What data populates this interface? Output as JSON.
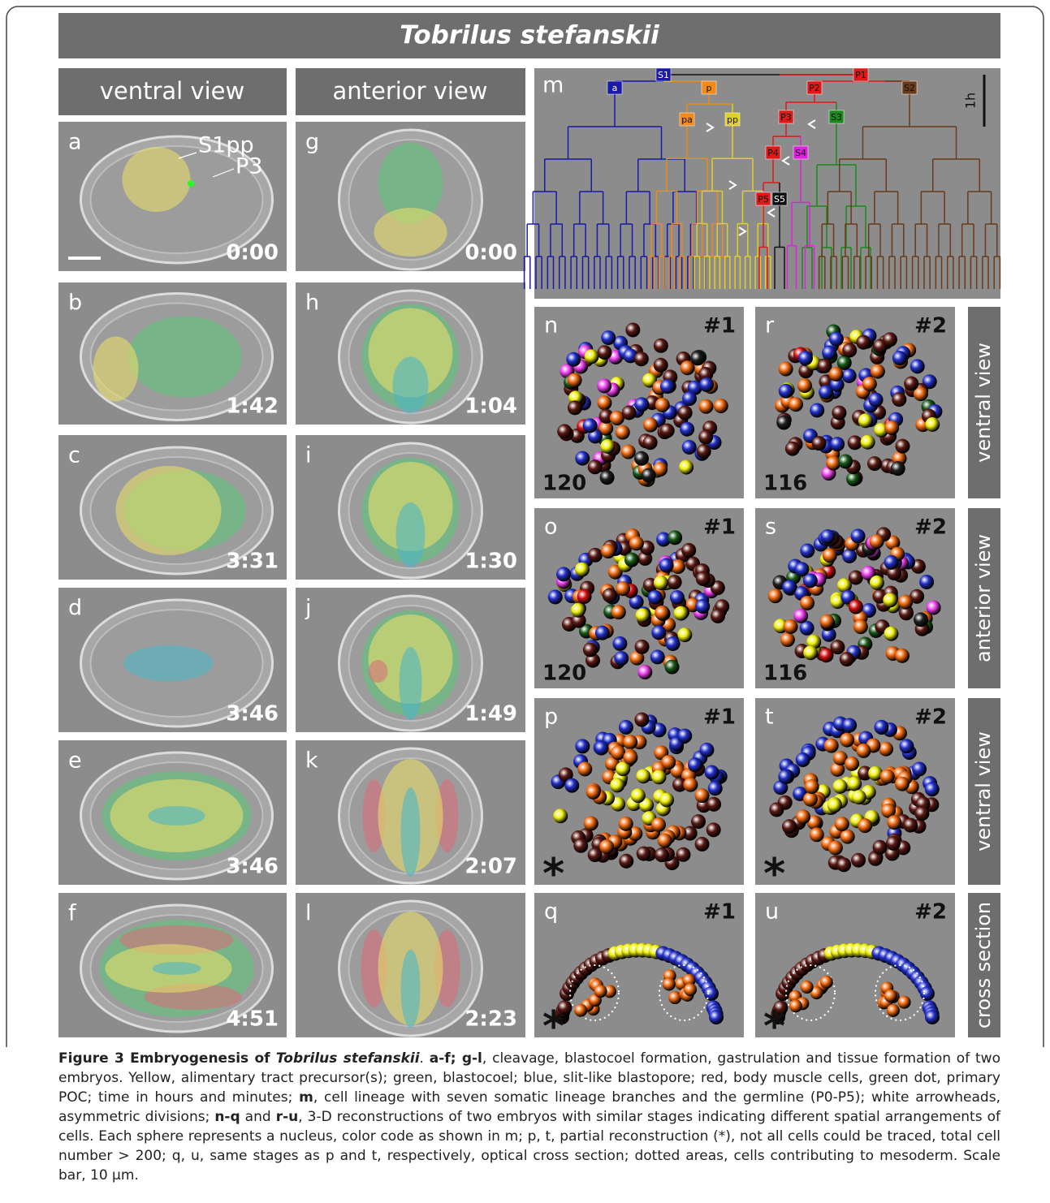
{
  "title": "Tobrilus stefanskii",
  "column_headers": [
    "ventral view",
    "anterior view"
  ],
  "micrographs": [
    {
      "letter": "a",
      "time": "0:00"
    },
    {
      "letter": "b",
      "time": "1:42"
    },
    {
      "letter": "c",
      "time": "3:31"
    },
    {
      "letter": "d",
      "time": "3:46"
    },
    {
      "letter": "e",
      "time": "3:46"
    },
    {
      "letter": "f",
      "time": "4:51"
    },
    {
      "letter": "g",
      "time": "0:00"
    },
    {
      "letter": "h",
      "time": "1:04"
    },
    {
      "letter": "i",
      "time": "1:30"
    },
    {
      "letter": "j",
      "time": "1:49"
    },
    {
      "letter": "k",
      "time": "2:07"
    },
    {
      "letter": "l",
      "time": "2:23"
    }
  ],
  "panel_a_labels": [
    "S1pp",
    "P3"
  ],
  "lineage": {
    "letter": "m",
    "scale": "1h",
    "nodes": [
      "S1",
      "P1",
      "a",
      "p",
      "P2",
      "S2",
      "pa",
      "pp",
      "P3",
      "S3",
      "P4",
      "S4",
      "P5",
      "S5"
    ]
  },
  "reconstructions": [
    {
      "letter": "n",
      "embryo": "#1",
      "count": 120
    },
    {
      "letter": "r",
      "embryo": "#2",
      "count": 116
    },
    {
      "letter": "o",
      "embryo": "#1",
      "count": 120
    },
    {
      "letter": "s",
      "embryo": "#2",
      "count": 116
    },
    {
      "letter": "p",
      "embryo": "#1",
      "marker": "*"
    },
    {
      "letter": "t",
      "embryo": "#2",
      "marker": "*"
    },
    {
      "letter": "q",
      "embryo": "#1",
      "marker": "*"
    },
    {
      "letter": "u",
      "embryo": "#2",
      "marker": "*"
    }
  ],
  "row_labels": [
    "ventral view",
    "anterior view",
    "ventral view",
    "cross section"
  ],
  "caption": [
    {
      "text": "Figure 3 Embryogenesis of ",
      "style": "bold"
    },
    {
      "text": "Tobrilus stefanskii",
      "style": "bold-italic"
    },
    {
      "text": ". ",
      "style": "normal"
    },
    {
      "text": "a-f; g-l",
      "style": "bold"
    },
    {
      "text": ", cleavage, blastocoel formation, gastrulation and tissue formation of two embryos. Yellow, alimentary tract precursor(s); green, blastocoel; blue, slit-like blastopore; red, body muscle cells, green dot, primary POC; time in hours and minutes; ",
      "style": "normal"
    },
    {
      "text": "m",
      "style": "bold"
    },
    {
      "text": ", cell lineage with seven somatic lineage branches and the germline (P0-P5); white arrowheads, asymmetric divisions; ",
      "style": "normal"
    },
    {
      "text": "n-q",
      "style": "bold"
    },
    {
      "text": " and ",
      "style": "normal"
    },
    {
      "text": "r-u",
      "style": "bold"
    },
    {
      "text": ", 3-D reconstructions of two embryos with similar stages indicating different spatial arrangements of cells. Each sphere represents a nucleus, color code as shown in m; p, t, partial reconstruction (*), not all cells could be traced, total cell number > 200; q, u, same stages as p and t, respectively, optical cross section; dotted areas, cells contributing to mesoderm. Scale bar, 10 μm.",
      "style": "normal"
    }
  ]
}
